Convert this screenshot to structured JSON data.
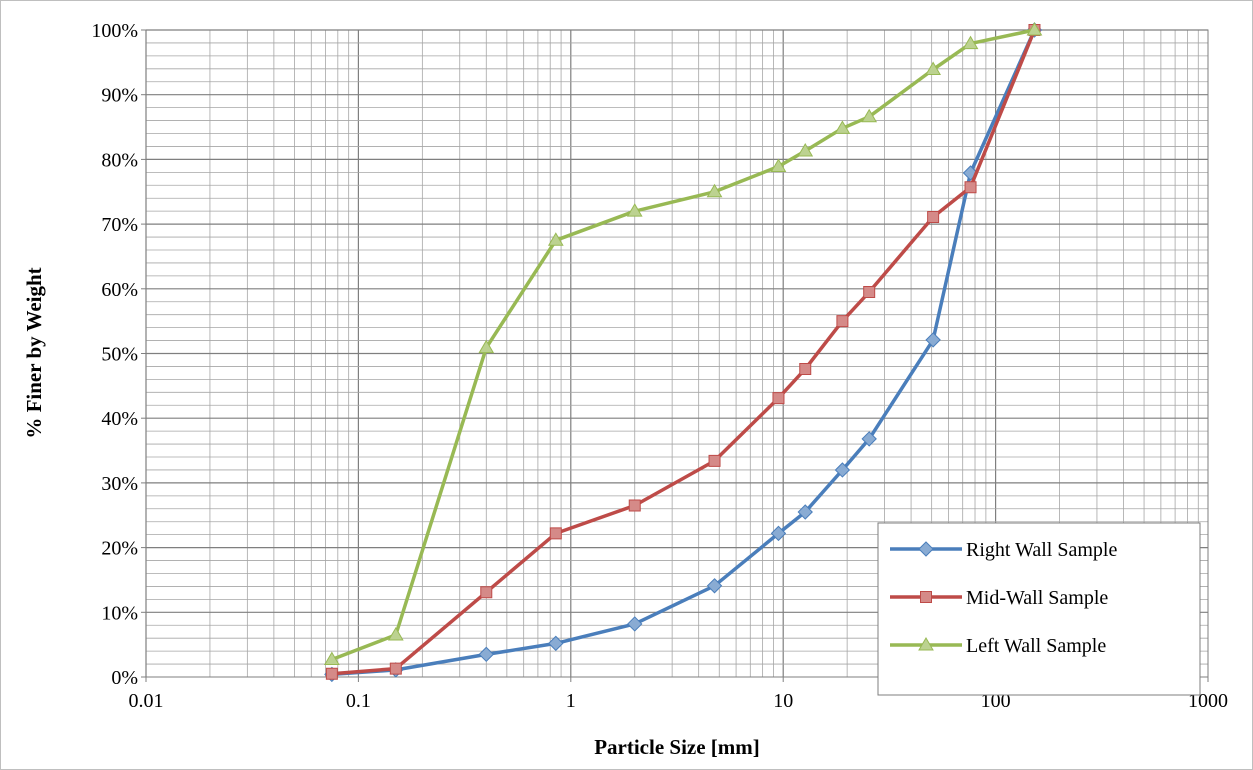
{
  "chart_data": {
    "type": "scatter",
    "x_scale": "log",
    "xlim": [
      0.01,
      1000
    ],
    "ylim": [
      0,
      1
    ],
    "xlabel": "Particle Size [mm]",
    "ylabel": "% Finer by Weight",
    "x_tick_labels": [
      "0.01",
      "0.1",
      "1",
      "10",
      "100",
      "1000"
    ],
    "x_tick_values": [
      0.01,
      0.1,
      1,
      10,
      100,
      1000
    ],
    "y_tick_labels": [
      "0%",
      "10%",
      "20%",
      "30%",
      "40%",
      "50%",
      "60%",
      "70%",
      "80%",
      "90%",
      "100%"
    ],
    "y_tick_values": [
      0,
      0.1,
      0.2,
      0.3,
      0.4,
      0.5,
      0.6,
      0.7,
      0.8,
      0.9,
      1.0
    ],
    "grid": true,
    "legend_position": "bottom-right",
    "series": [
      {
        "name": "Right Wall Sample",
        "color": "#4a7ebb",
        "marker": "diamond",
        "x": [
          0.075,
          0.15,
          0.4,
          0.85,
          2.0,
          4.75,
          9.5,
          12.7,
          19.0,
          25.4,
          50.8,
          76.2,
          152.4
        ],
        "y": [
          0.004,
          0.011,
          0.035,
          0.052,
          0.082,
          0.141,
          0.222,
          0.255,
          0.32,
          0.368,
          0.521,
          0.779,
          1.0
        ]
      },
      {
        "name": "Mid-Wall Sample",
        "color": "#be4b48",
        "marker": "square",
        "x": [
          0.075,
          0.15,
          0.4,
          0.85,
          2.0,
          4.75,
          9.5,
          12.7,
          19.0,
          25.4,
          50.8,
          76.2,
          152.4
        ],
        "y": [
          0.005,
          0.013,
          0.131,
          0.222,
          0.265,
          0.334,
          0.431,
          0.476,
          0.55,
          0.595,
          0.711,
          0.757,
          1.0
        ]
      },
      {
        "name": "Left Wall Sample",
        "color": "#98b954",
        "marker": "triangle",
        "x": [
          0.075,
          0.15,
          0.4,
          0.85,
          2.0,
          4.75,
          9.5,
          12.7,
          19.0,
          25.4,
          50.8,
          76.2,
          152.4
        ],
        "y": [
          0.027,
          0.065,
          0.509,
          0.675,
          0.72,
          0.75,
          0.789,
          0.813,
          0.848,
          0.866,
          0.939,
          0.979,
          1.0
        ]
      }
    ]
  }
}
